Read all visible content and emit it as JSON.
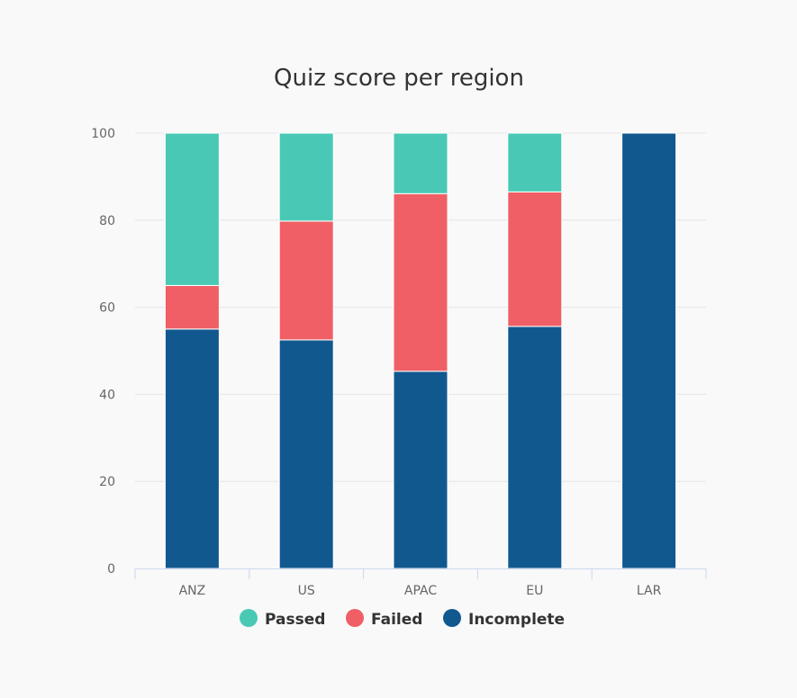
{
  "chart_data": {
    "type": "bar",
    "stacked": true,
    "title": "Quiz score per region",
    "xlabel": "",
    "ylabel": "",
    "categories": [
      "ANZ",
      "US",
      "APAC",
      "EU",
      "LAR"
    ],
    "ylim": [
      0,
      100
    ],
    "yticks": [
      0,
      20,
      40,
      60,
      80,
      100
    ],
    "grid": true,
    "legend_position": "bottom",
    "series": [
      {
        "name": "Incomplete",
        "color": "#11588f",
        "values": [
          55,
          52.5,
          45.3,
          55.6,
          100
        ]
      },
      {
        "name": "Failed",
        "color": "#f05f65",
        "values": [
          10,
          27.3,
          40.8,
          30.9,
          0
        ]
      },
      {
        "name": "Passed",
        "color": "#49c9b5",
        "values": [
          35,
          20.2,
          13.9,
          13.5,
          0
        ]
      }
    ],
    "legend_order": [
      "Passed",
      "Failed",
      "Incomplete"
    ]
  }
}
